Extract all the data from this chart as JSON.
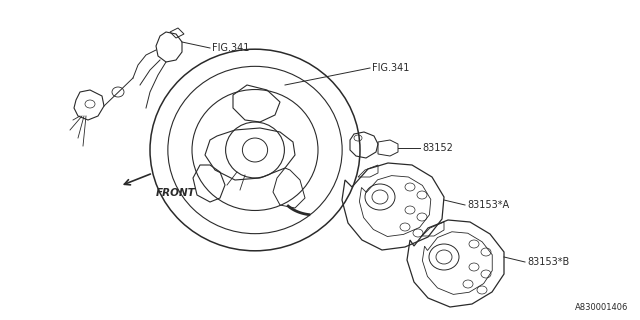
{
  "bg_color": "#ffffff",
  "line_color": "#2a2a2a",
  "text_color": "#2a2a2a",
  "fig_width": 6.4,
  "fig_height": 3.2,
  "dpi": 100,
  "labels": {
    "fig341_upper": "FIG.341",
    "fig341_main": "FIG.341",
    "part_83152": "83152",
    "part_83153A": "83153*A",
    "part_83153B": "83153*B",
    "front": "FRONT",
    "diagram_id": "A830001406"
  }
}
